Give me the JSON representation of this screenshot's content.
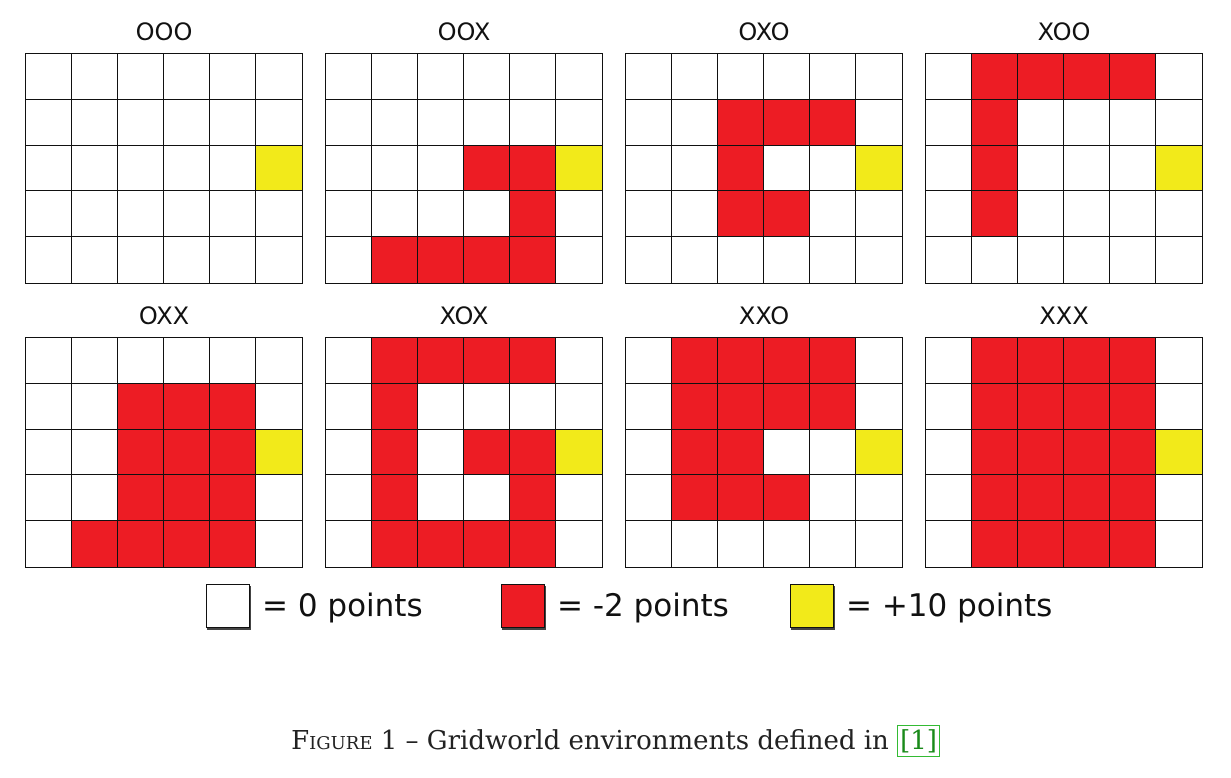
{
  "colors": {
    "empty": "#ffffff",
    "penalty": "#ed1c24",
    "goal": "#f2ea1a",
    "grid_line": "#111111"
  },
  "environments": [
    {
      "label": "OOO",
      "rows": [
        "......",
        "......",
        ".....G",
        "......",
        "......"
      ]
    },
    {
      "label": "OOX",
      "rows": [
        "......",
        "......",
        "...RRG",
        "....R.",
        ".RRRR."
      ]
    },
    {
      "label": "OXO",
      "rows": [
        "......",
        "..RRR.",
        "..R..G",
        "..RR..",
        "......"
      ]
    },
    {
      "label": "XOO",
      "rows": [
        ".RRRR.",
        ".R....",
        ".R...G",
        ".R....",
        "......"
      ]
    },
    {
      "label": "OXX",
      "rows": [
        "......",
        "..RRR.",
        "..RRRG",
        "..RRR.",
        ".RRRR."
      ]
    },
    {
      "label": "XOX",
      "rows": [
        ".RRRR.",
        ".R....",
        ".R.RRG",
        ".R..R.",
        ".RRRR."
      ]
    },
    {
      "label": "XXO",
      "rows": [
        ".RRRR.",
        ".RRRR.",
        ".RR..G",
        ".RRR..",
        "......"
      ]
    },
    {
      "label": "XXX",
      "rows": [
        ".RRRR.",
        ".RRRR.",
        ".RRRRG",
        ".RRRR.",
        ".RRRR."
      ]
    }
  ],
  "legend": [
    {
      "type": "empty",
      "text": "= 0 points"
    },
    {
      "type": "penalty",
      "text": "= -2 points"
    },
    {
      "type": "goal",
      "text": "= +10 points"
    }
  ],
  "caption": {
    "figure": "Figure 1",
    "text": " – Gridworld environments defined in ",
    "ref": "[1]"
  }
}
